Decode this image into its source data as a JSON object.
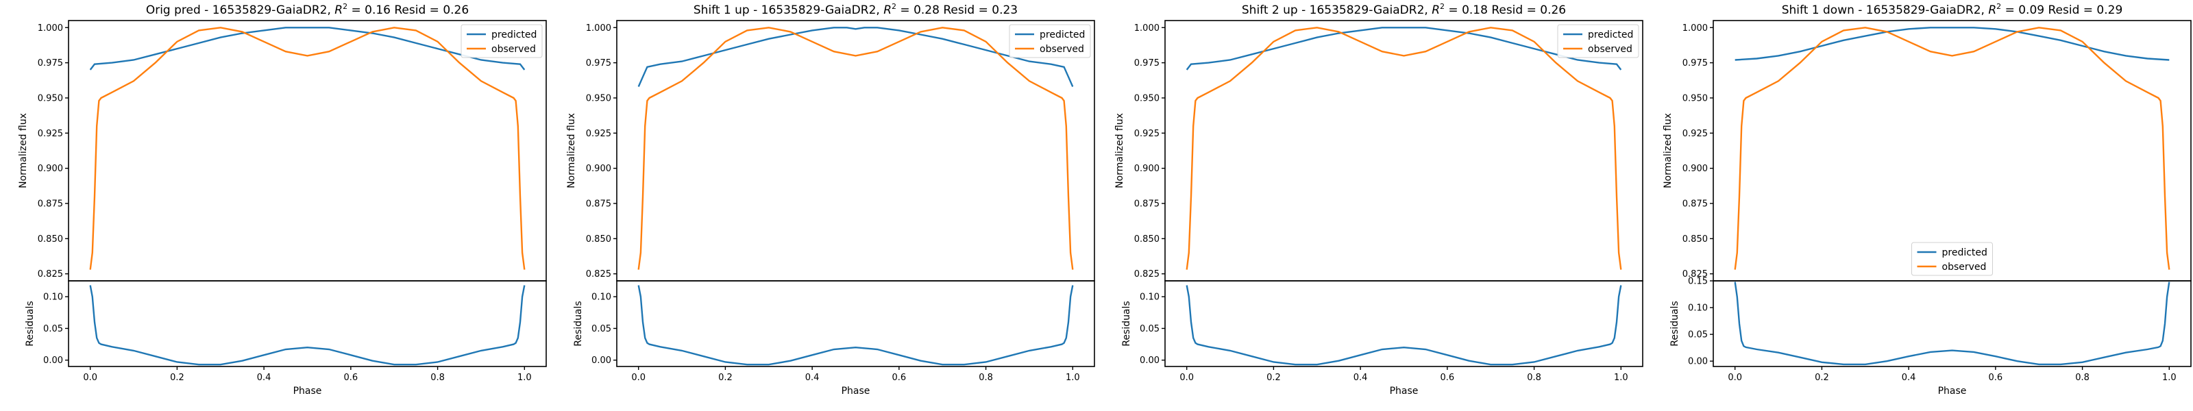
{
  "colors": {
    "predicted": "#1f77b4",
    "observed": "#ff7f0e"
  },
  "chart_data": [
    {
      "type": "line",
      "title": "Orig pred - 16535829-GaiaDR2, R² = 0.16 Resid = 0.26",
      "title_parts": {
        "prefix": "Orig pred - 16535829-GaiaDR2, ",
        "r_symbol": "R",
        "r_exp": "2",
        "suffix": " = 0.16 Resid = 0.26"
      },
      "ylabel": "Normalized flux",
      "xlabel": "Phase",
      "resid_ylabel": "Residuals",
      "ylim": [
        0.82,
        1.005
      ],
      "yticks": [
        "0.825",
        "0.850",
        "0.875",
        "0.900",
        "0.925",
        "0.950",
        "0.975",
        "1.000"
      ],
      "resid_ylim": [
        -0.01,
        0.125
      ],
      "resid_yticks": [
        "0.00",
        "0.05",
        "0.10"
      ],
      "xlim": [
        -0.05,
        1.05
      ],
      "xticks": [
        "0.0",
        "0.2",
        "0.4",
        "0.6",
        "0.8",
        "1.0"
      ],
      "legend_placement": "top-right",
      "series": [
        {
          "name": "predicted",
          "edge_offset": 0.0,
          "edge_value": 0.97,
          "x": [
            0.0,
            0.01,
            0.05,
            0.1,
            0.15,
            0.2,
            0.25,
            0.3,
            0.35,
            0.4,
            0.45,
            0.5,
            0.55,
            0.6,
            0.65,
            0.7,
            0.75,
            0.8,
            0.85,
            0.9,
            0.95,
            0.99,
            1.0
          ],
          "y": [
            0.97,
            0.974,
            0.975,
            0.977,
            0.981,
            0.985,
            0.989,
            0.993,
            0.996,
            0.998,
            1.0,
            1.0,
            1.0,
            0.998,
            0.996,
            0.993,
            0.989,
            0.985,
            0.981,
            0.977,
            0.975,
            0.974,
            0.97
          ]
        },
        {
          "name": "observed",
          "x": [
            0.0,
            0.005,
            0.01,
            0.015,
            0.02,
            0.025,
            0.05,
            0.1,
            0.15,
            0.2,
            0.25,
            0.3,
            0.35,
            0.4,
            0.45,
            0.5,
            0.55,
            0.6,
            0.65,
            0.7,
            0.75,
            0.8,
            0.85,
            0.9,
            0.95,
            0.975,
            0.98,
            0.985,
            0.99,
            0.995,
            1.0
          ],
          "y": [
            0.828,
            0.84,
            0.88,
            0.93,
            0.948,
            0.95,
            0.954,
            0.962,
            0.975,
            0.99,
            0.998,
            1.0,
            0.997,
            0.99,
            0.983,
            0.98,
            0.983,
            0.99,
            0.997,
            1.0,
            0.998,
            0.99,
            0.975,
            0.962,
            0.954,
            0.95,
            0.948,
            0.93,
            0.88,
            0.84,
            0.828
          ]
        }
      ],
      "residuals": {
        "x": [
          0.0,
          0.005,
          0.01,
          0.015,
          0.02,
          0.025,
          0.05,
          0.1,
          0.15,
          0.2,
          0.25,
          0.3,
          0.35,
          0.4,
          0.45,
          0.5,
          0.55,
          0.6,
          0.65,
          0.7,
          0.75,
          0.8,
          0.85,
          0.9,
          0.95,
          0.975,
          0.98,
          0.985,
          0.99,
          0.995,
          1.0
        ],
        "y": [
          0.118,
          0.1,
          0.06,
          0.035,
          0.027,
          0.025,
          0.021,
          0.015,
          0.006,
          -0.003,
          -0.007,
          -0.007,
          -0.001,
          0.008,
          0.017,
          0.02,
          0.017,
          0.008,
          -0.001,
          -0.007,
          -0.007,
          -0.003,
          0.006,
          0.015,
          0.021,
          0.025,
          0.027,
          0.035,
          0.06,
          0.1,
          0.118
        ]
      }
    },
    {
      "type": "line",
      "title": "Shift 1 up - 16535829-GaiaDR2, R² = 0.28 Resid = 0.23",
      "title_parts": {
        "prefix": "Shift 1 up - 16535829-GaiaDR2, ",
        "r_symbol": "R",
        "r_exp": "2",
        "suffix": " = 0.28 Resid = 0.23"
      },
      "ylabel": "Normalized flux",
      "xlabel": "Phase",
      "resid_ylabel": "Residuals",
      "ylim": [
        0.82,
        1.005
      ],
      "yticks": [
        "0.825",
        "0.850",
        "0.875",
        "0.900",
        "0.925",
        "0.950",
        "0.975",
        "1.000"
      ],
      "resid_ylim": [
        -0.01,
        0.125
      ],
      "resid_yticks": [
        "0.00",
        "0.05",
        "0.10"
      ],
      "xlim": [
        -0.05,
        1.05
      ],
      "xticks": [
        "0.0",
        "0.2",
        "0.4",
        "0.6",
        "0.8",
        "1.0"
      ],
      "legend_placement": "top-right",
      "series": [
        {
          "name": "predicted",
          "x": [
            0.0,
            0.01,
            0.02,
            0.05,
            0.1,
            0.15,
            0.2,
            0.25,
            0.3,
            0.35,
            0.4,
            0.45,
            0.48,
            0.5,
            0.52,
            0.55,
            0.6,
            0.65,
            0.7,
            0.75,
            0.8,
            0.85,
            0.9,
            0.95,
            0.98,
            0.99,
            1.0
          ],
          "y": [
            0.958,
            0.965,
            0.972,
            0.974,
            0.976,
            0.98,
            0.984,
            0.988,
            0.992,
            0.995,
            0.998,
            1.0,
            1.0,
            0.999,
            1.0,
            1.0,
            0.998,
            0.995,
            0.992,
            0.988,
            0.984,
            0.98,
            0.976,
            0.974,
            0.972,
            0.965,
            0.958
          ]
        },
        {
          "name": "observed",
          "x": [
            0.0,
            0.005,
            0.01,
            0.015,
            0.02,
            0.025,
            0.05,
            0.1,
            0.15,
            0.2,
            0.25,
            0.3,
            0.35,
            0.4,
            0.45,
            0.5,
            0.55,
            0.6,
            0.65,
            0.7,
            0.75,
            0.8,
            0.85,
            0.9,
            0.95,
            0.975,
            0.98,
            0.985,
            0.99,
            0.995,
            1.0
          ],
          "y": [
            0.828,
            0.84,
            0.88,
            0.93,
            0.948,
            0.95,
            0.954,
            0.962,
            0.975,
            0.99,
            0.998,
            1.0,
            0.997,
            0.99,
            0.983,
            0.98,
            0.983,
            0.99,
            0.997,
            1.0,
            0.998,
            0.99,
            0.975,
            0.962,
            0.954,
            0.95,
            0.948,
            0.93,
            0.88,
            0.84,
            0.828
          ]
        }
      ],
      "residuals": {
        "x": [
          0.0,
          0.005,
          0.01,
          0.015,
          0.02,
          0.025,
          0.05,
          0.1,
          0.15,
          0.2,
          0.25,
          0.3,
          0.35,
          0.4,
          0.45,
          0.5,
          0.55,
          0.6,
          0.65,
          0.7,
          0.75,
          0.8,
          0.85,
          0.9,
          0.95,
          0.975,
          0.98,
          0.985,
          0.99,
          0.995,
          1.0
        ],
        "y": [
          0.118,
          0.1,
          0.06,
          0.035,
          0.027,
          0.025,
          0.021,
          0.015,
          0.006,
          -0.003,
          -0.007,
          -0.007,
          -0.001,
          0.008,
          0.017,
          0.02,
          0.017,
          0.008,
          -0.001,
          -0.007,
          -0.007,
          -0.003,
          0.006,
          0.015,
          0.021,
          0.025,
          0.027,
          0.035,
          0.06,
          0.1,
          0.118
        ]
      }
    },
    {
      "type": "line",
      "title": "Shift 2 up - 16535829-GaiaDR2, R² = 0.18 Resid = 0.26",
      "title_parts": {
        "prefix": "Shift 2 up - 16535829-GaiaDR2, ",
        "r_symbol": "R",
        "r_exp": "2",
        "suffix": " = 0.18 Resid = 0.26"
      },
      "ylabel": "Normalized flux",
      "xlabel": "Phase",
      "resid_ylabel": "Residuals",
      "ylim": [
        0.82,
        1.005
      ],
      "yticks": [
        "0.825",
        "0.850",
        "0.875",
        "0.900",
        "0.925",
        "0.950",
        "0.975",
        "1.000"
      ],
      "resid_ylim": [
        -0.01,
        0.125
      ],
      "resid_yticks": [
        "0.00",
        "0.05",
        "0.10"
      ],
      "xlim": [
        -0.05,
        1.05
      ],
      "xticks": [
        "0.0",
        "0.2",
        "0.4",
        "0.6",
        "0.8",
        "1.0"
      ],
      "legend_placement": "top-right",
      "series": [
        {
          "name": "predicted",
          "x": [
            0.0,
            0.01,
            0.05,
            0.1,
            0.15,
            0.2,
            0.25,
            0.3,
            0.35,
            0.4,
            0.45,
            0.5,
            0.55,
            0.6,
            0.65,
            0.7,
            0.75,
            0.8,
            0.85,
            0.9,
            0.95,
            0.99,
            1.0
          ],
          "y": [
            0.97,
            0.974,
            0.975,
            0.977,
            0.981,
            0.985,
            0.989,
            0.993,
            0.996,
            0.998,
            1.0,
            1.0,
            1.0,
            0.998,
            0.996,
            0.993,
            0.989,
            0.985,
            0.981,
            0.977,
            0.975,
            0.974,
            0.97
          ]
        },
        {
          "name": "observed",
          "x": [
            0.0,
            0.005,
            0.01,
            0.015,
            0.02,
            0.025,
            0.05,
            0.1,
            0.15,
            0.2,
            0.25,
            0.3,
            0.35,
            0.4,
            0.45,
            0.5,
            0.55,
            0.6,
            0.65,
            0.7,
            0.75,
            0.8,
            0.85,
            0.9,
            0.95,
            0.975,
            0.98,
            0.985,
            0.99,
            0.995,
            1.0
          ],
          "y": [
            0.828,
            0.84,
            0.88,
            0.93,
            0.948,
            0.95,
            0.954,
            0.962,
            0.975,
            0.99,
            0.998,
            1.0,
            0.997,
            0.99,
            0.983,
            0.98,
            0.983,
            0.99,
            0.997,
            1.0,
            0.998,
            0.99,
            0.975,
            0.962,
            0.954,
            0.95,
            0.948,
            0.93,
            0.88,
            0.84,
            0.828
          ]
        }
      ],
      "residuals": {
        "x": [
          0.0,
          0.005,
          0.01,
          0.015,
          0.02,
          0.025,
          0.05,
          0.1,
          0.15,
          0.2,
          0.25,
          0.3,
          0.35,
          0.4,
          0.45,
          0.5,
          0.55,
          0.6,
          0.65,
          0.7,
          0.75,
          0.8,
          0.85,
          0.9,
          0.95,
          0.975,
          0.98,
          0.985,
          0.99,
          0.995,
          1.0
        ],
        "y": [
          0.118,
          0.1,
          0.06,
          0.035,
          0.027,
          0.025,
          0.021,
          0.015,
          0.006,
          -0.003,
          -0.007,
          -0.007,
          -0.001,
          0.008,
          0.017,
          0.02,
          0.017,
          0.008,
          -0.001,
          -0.007,
          -0.007,
          -0.003,
          0.006,
          0.015,
          0.021,
          0.025,
          0.027,
          0.035,
          0.06,
          0.1,
          0.118
        ]
      }
    },
    {
      "type": "line",
      "title": "Shift 1 down - 16535829-GaiaDR2, R² = 0.09 Resid = 0.29",
      "title_parts": {
        "prefix": "Shift 1 down - 16535829-GaiaDR2, ",
        "r_symbol": "R",
        "r_exp": "2",
        "suffix": " = 0.09 Resid = 0.29"
      },
      "ylabel": "Normalized flux",
      "xlabel": "Phase",
      "resid_ylabel": "Residuals",
      "ylim": [
        0.82,
        1.005
      ],
      "yticks": [
        "0.825",
        "0.850",
        "0.875",
        "0.900",
        "0.925",
        "0.950",
        "0.975",
        "1.000"
      ],
      "resid_ylim": [
        -0.01,
        0.15
      ],
      "resid_yticks": [
        "0.00",
        "0.05",
        "0.10",
        "0.15"
      ],
      "xlim": [
        -0.05,
        1.05
      ],
      "xticks": [
        "0.0",
        "0.2",
        "0.4",
        "0.6",
        "0.8",
        "1.0"
      ],
      "legend_placement": "bottom-center",
      "series": [
        {
          "name": "predicted",
          "x": [
            0.0,
            0.05,
            0.1,
            0.15,
            0.2,
            0.25,
            0.3,
            0.35,
            0.4,
            0.45,
            0.5,
            0.55,
            0.6,
            0.65,
            0.7,
            0.75,
            0.8,
            0.85,
            0.9,
            0.95,
            1.0
          ],
          "y": [
            0.977,
            0.978,
            0.98,
            0.983,
            0.987,
            0.991,
            0.994,
            0.997,
            0.999,
            1.0,
            1.0,
            1.0,
            0.999,
            0.997,
            0.994,
            0.991,
            0.987,
            0.983,
            0.98,
            0.978,
            0.977
          ]
        },
        {
          "name": "observed",
          "x": [
            0.0,
            0.005,
            0.01,
            0.015,
            0.02,
            0.025,
            0.05,
            0.1,
            0.15,
            0.2,
            0.25,
            0.3,
            0.35,
            0.4,
            0.45,
            0.5,
            0.55,
            0.6,
            0.65,
            0.7,
            0.75,
            0.8,
            0.85,
            0.9,
            0.95,
            0.975,
            0.98,
            0.985,
            0.99,
            0.995,
            1.0
          ],
          "y": [
            0.828,
            0.84,
            0.88,
            0.93,
            0.948,
            0.95,
            0.954,
            0.962,
            0.975,
            0.99,
            0.998,
            1.0,
            0.997,
            0.99,
            0.983,
            0.98,
            0.983,
            0.99,
            0.997,
            1.0,
            0.998,
            0.99,
            0.975,
            0.962,
            0.954,
            0.95,
            0.948,
            0.93,
            0.88,
            0.84,
            0.828
          ]
        }
      ],
      "residuals": {
        "x": [
          0.0,
          0.005,
          0.01,
          0.015,
          0.02,
          0.025,
          0.05,
          0.1,
          0.15,
          0.2,
          0.25,
          0.3,
          0.35,
          0.4,
          0.45,
          0.5,
          0.55,
          0.6,
          0.65,
          0.7,
          0.75,
          0.8,
          0.85,
          0.9,
          0.95,
          0.975,
          0.98,
          0.985,
          0.99,
          0.995,
          1.0
        ],
        "y": [
          0.148,
          0.12,
          0.07,
          0.038,
          0.028,
          0.026,
          0.022,
          0.016,
          0.007,
          -0.002,
          -0.006,
          -0.006,
          0.0,
          0.009,
          0.017,
          0.02,
          0.017,
          0.009,
          0.0,
          -0.006,
          -0.006,
          -0.002,
          0.007,
          0.016,
          0.022,
          0.026,
          0.028,
          0.038,
          0.07,
          0.12,
          0.148
        ]
      }
    }
  ]
}
